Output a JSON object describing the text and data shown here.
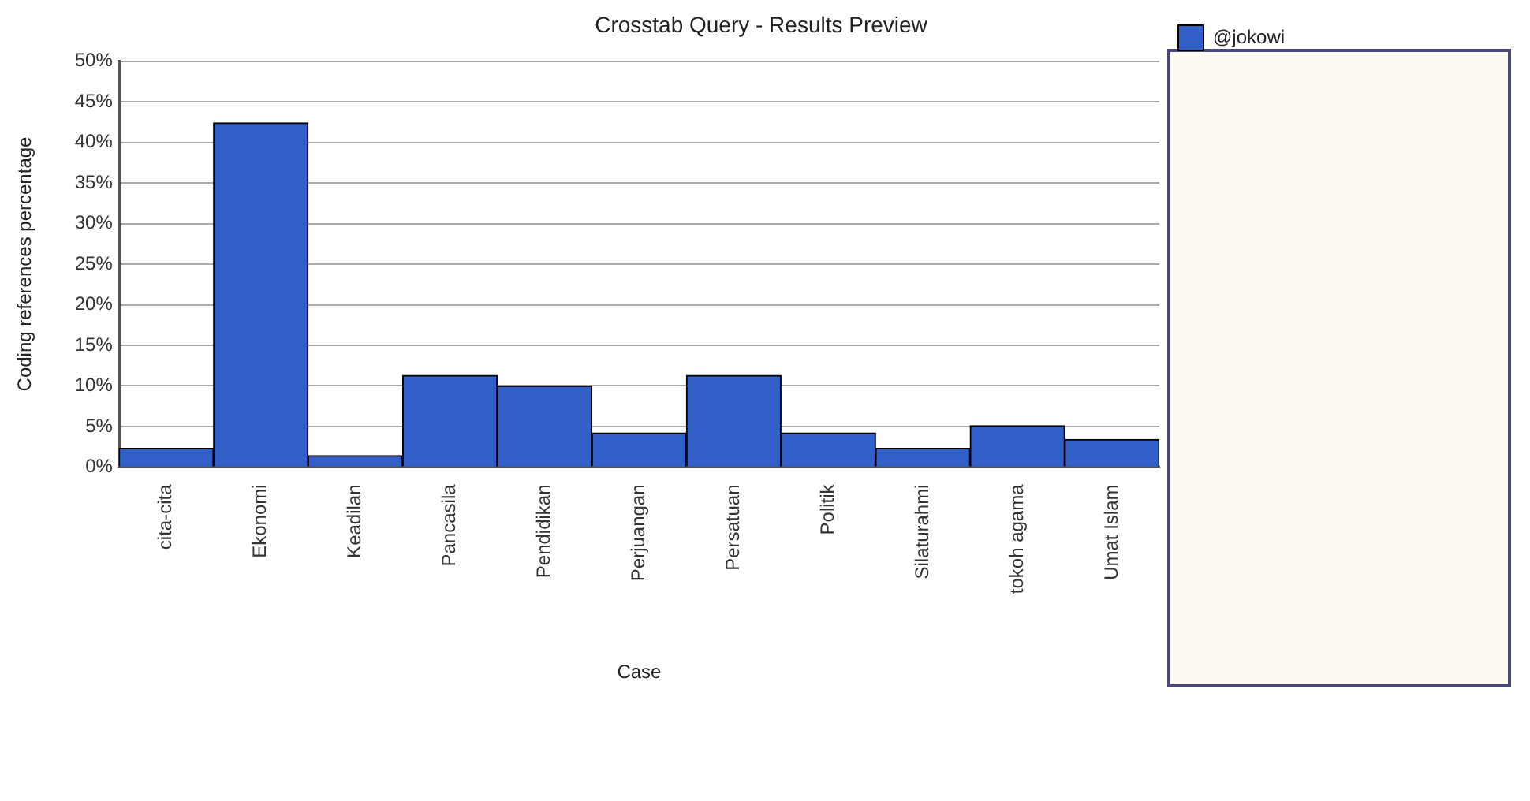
{
  "chart_data": {
    "type": "bar",
    "title": "Crosstab Query - Results Preview",
    "xlabel": "Case",
    "ylabel": "Coding references percentage",
    "categories": [
      "cita-cita",
      "Ekonomi",
      "Keadilan",
      "Pancasila",
      "Pendidikan",
      "Perjuangan",
      "Persatuan",
      "Politik",
      "Silaturahmi",
      "tokoh agama",
      "Umat Islam"
    ],
    "series": [
      {
        "name": "@jokowi",
        "color": "#3060c8",
        "values": [
          2.3,
          42.4,
          1.4,
          11.3,
          10.0,
          4.2,
          11.3,
          4.2,
          2.3,
          5.1,
          3.4
        ]
      }
    ],
    "ylim": [
      0,
      50
    ],
    "yticks": [
      {
        "value": 0,
        "label": "0%"
      },
      {
        "value": 5,
        "label": "5%"
      },
      {
        "value": 10,
        "label": "10%"
      },
      {
        "value": 15,
        "label": "15%"
      },
      {
        "value": 20,
        "label": "20%"
      },
      {
        "value": 25,
        "label": "25%"
      },
      {
        "value": 30,
        "label": "30%"
      },
      {
        "value": 35,
        "label": "35%"
      },
      {
        "value": 40,
        "label": "40%"
      },
      {
        "value": 45,
        "label": "45%"
      },
      {
        "value": 50,
        "label": "50%"
      }
    ],
    "grid": "y",
    "legend": "right"
  }
}
